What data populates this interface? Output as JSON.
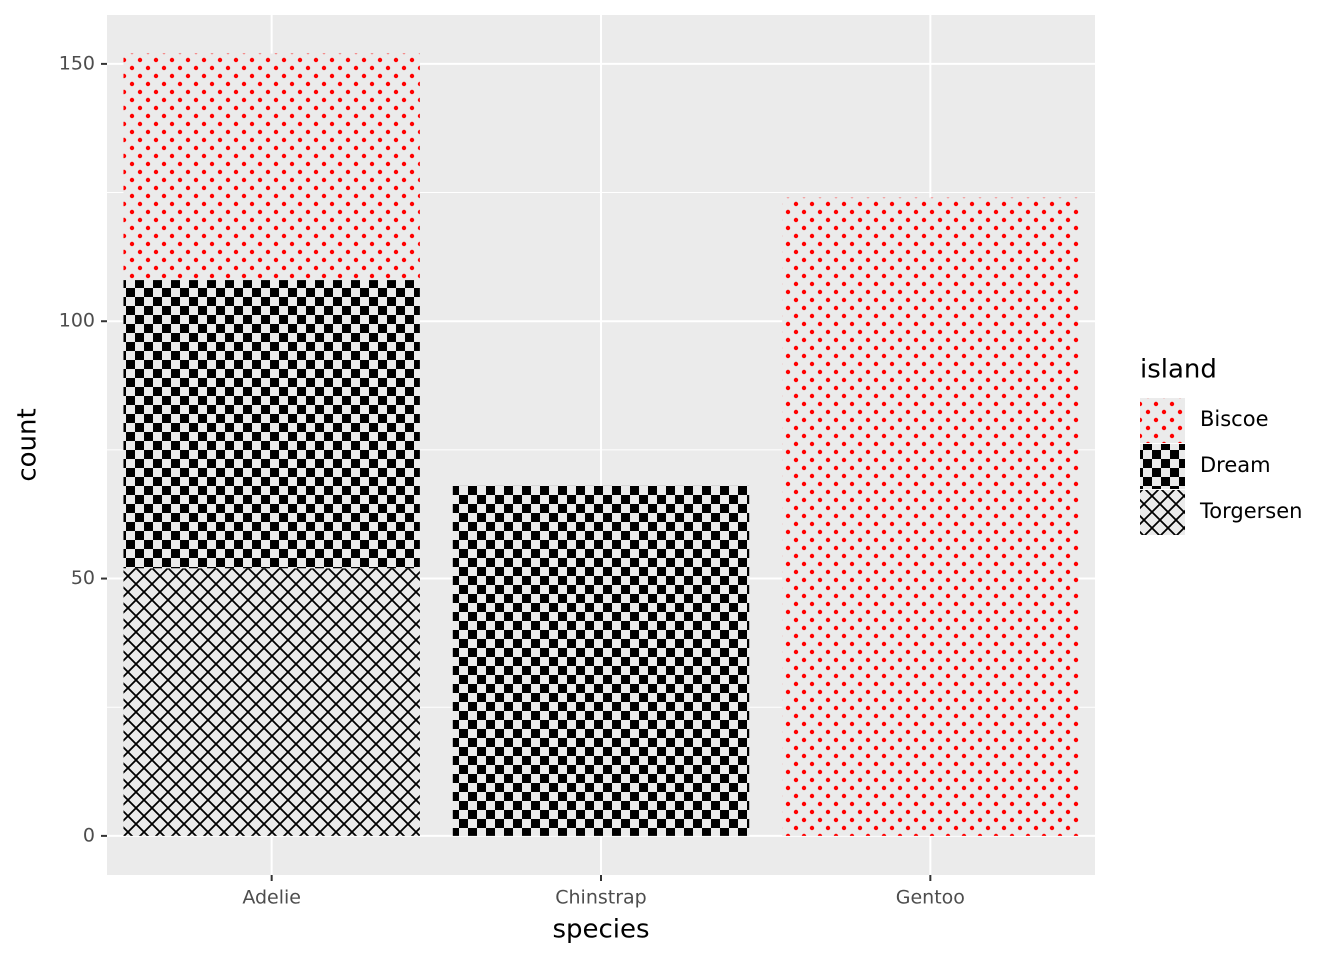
{
  "chart_data": {
    "type": "stacked_bar",
    "x_label": "species",
    "y_label": "count",
    "categories": [
      "Adelie",
      "Chinstrap",
      "Gentoo"
    ],
    "series": [
      {
        "name": "Biscoe",
        "color": "red",
        "pattern": "dots",
        "values": [
          44,
          null,
          124
        ]
      },
      {
        "name": "Dream",
        "color": "black",
        "pattern": "checker",
        "values": [
          56,
          68,
          null
        ]
      },
      {
        "name": "Torgersen",
        "color": "black",
        "pattern": "crosshatch",
        "values": [
          52,
          null,
          null
        ]
      }
    ],
    "legend_title": "island",
    "legend": "right",
    "ylim": [
      -7.6,
      159.5
    ],
    "yticks": [
      0,
      50,
      100,
      150
    ],
    "minor_yticks": [
      25,
      75,
      125
    ],
    "grid": true
  }
}
